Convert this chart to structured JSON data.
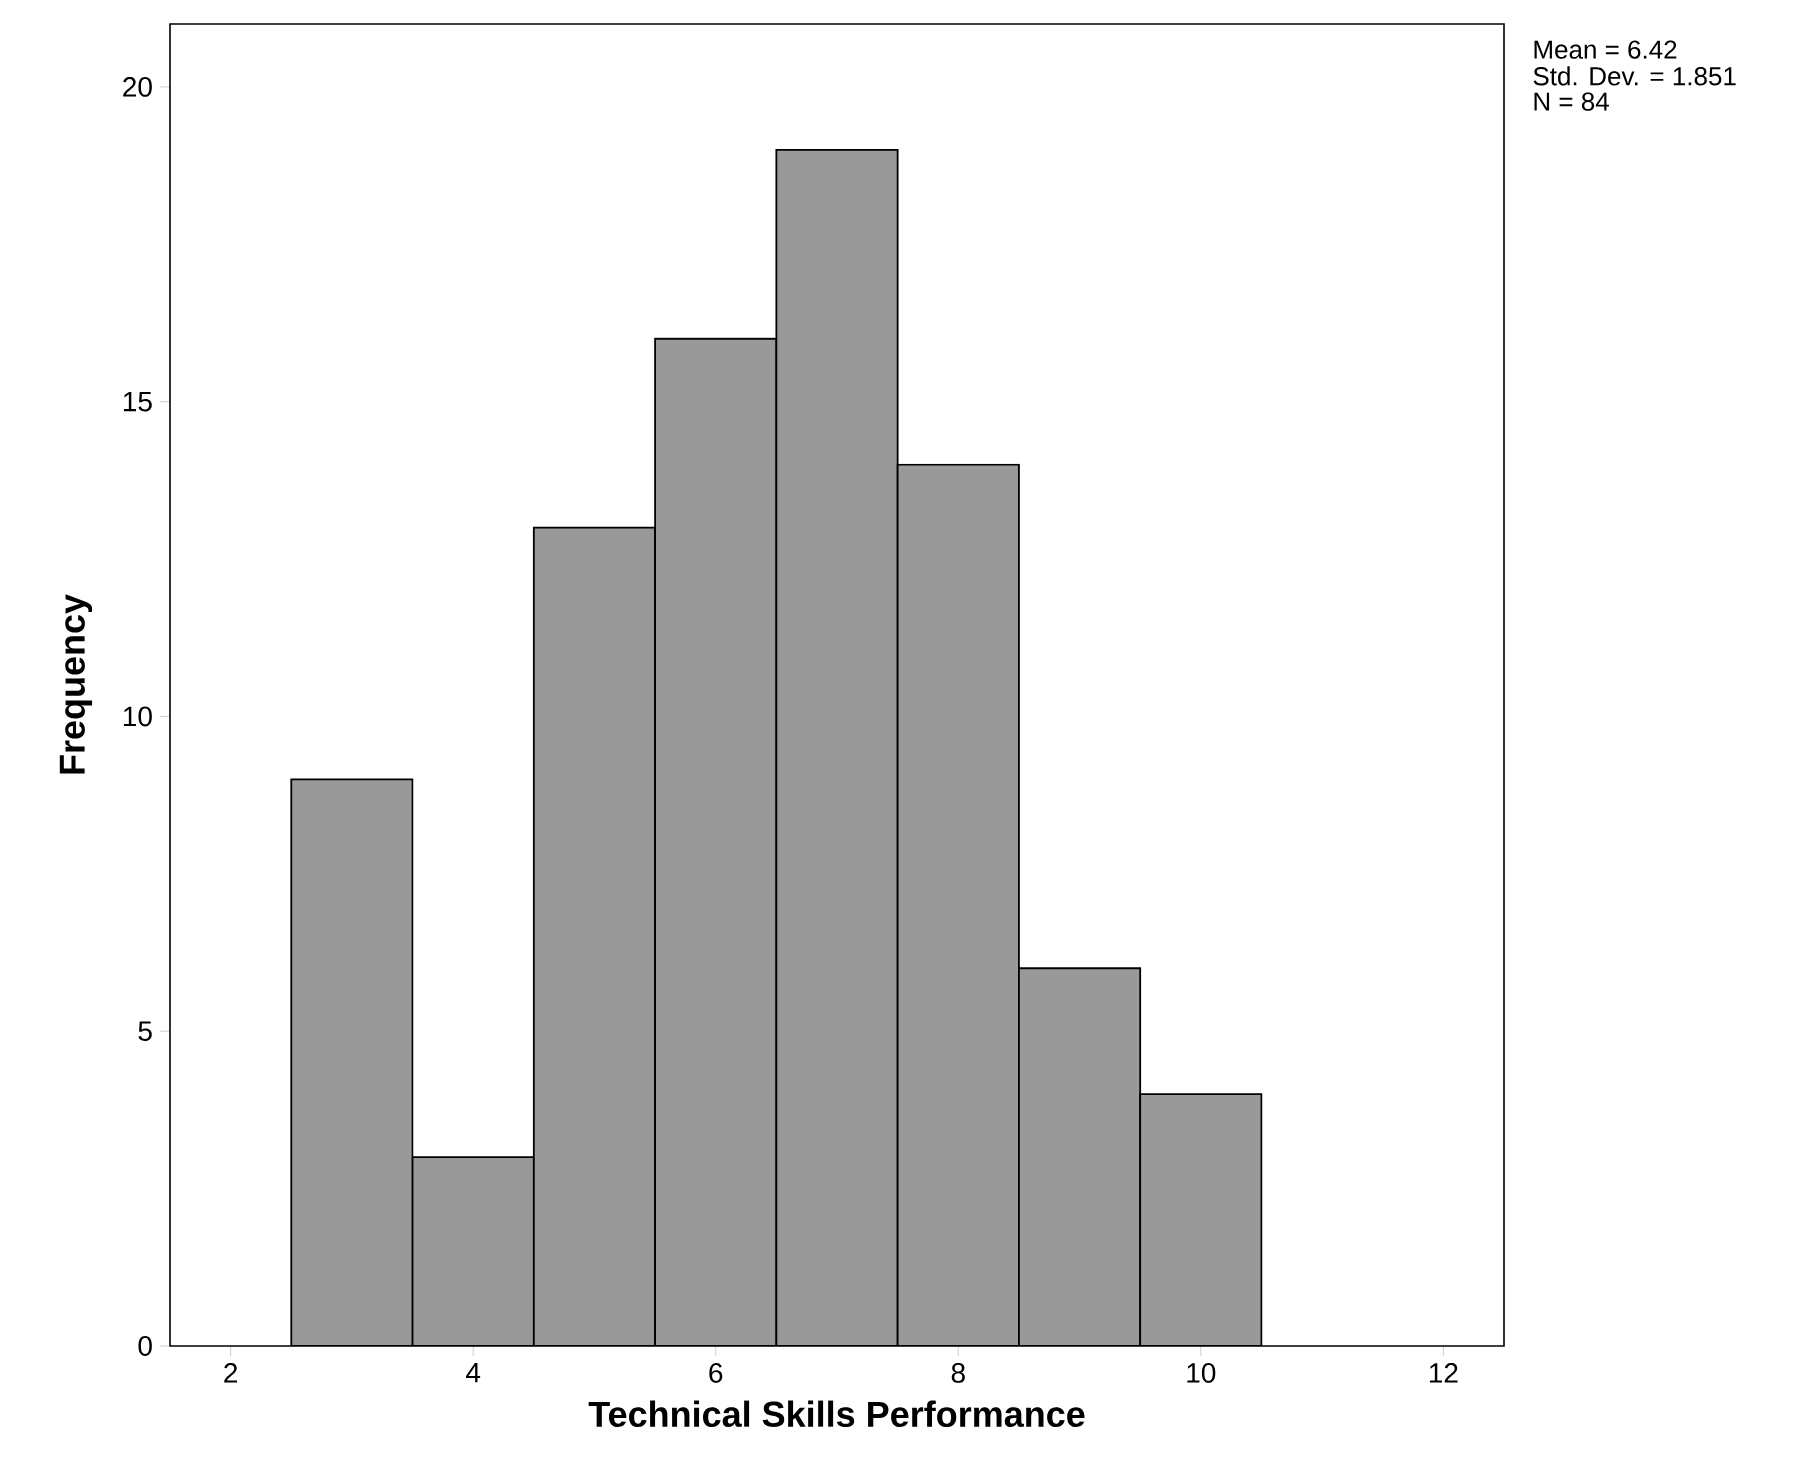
{
  "chart_data": {
    "type": "histogram",
    "xlabel": "Technical Skills Performance",
    "ylabel": "Frequency",
    "bins": [
      2.5,
      3.5,
      4.5,
      5.5,
      6.5,
      7.5,
      8.5,
      9.5,
      10.5
    ],
    "values": [
      9,
      3,
      13,
      16,
      19,
      14,
      6,
      4
    ],
    "color": "#999999",
    "xlim": [
      1.5,
      12.5
    ],
    "ylim": [
      0,
      21
    ],
    "xticks": [
      2,
      4,
      6,
      8,
      10,
      12
    ],
    "yticks": [
      0,
      5,
      10,
      15,
      20
    ],
    "annotations": [
      "Mean = 6.42",
      "Std. Dev. = 1.851",
      "N = 84"
    ]
  }
}
